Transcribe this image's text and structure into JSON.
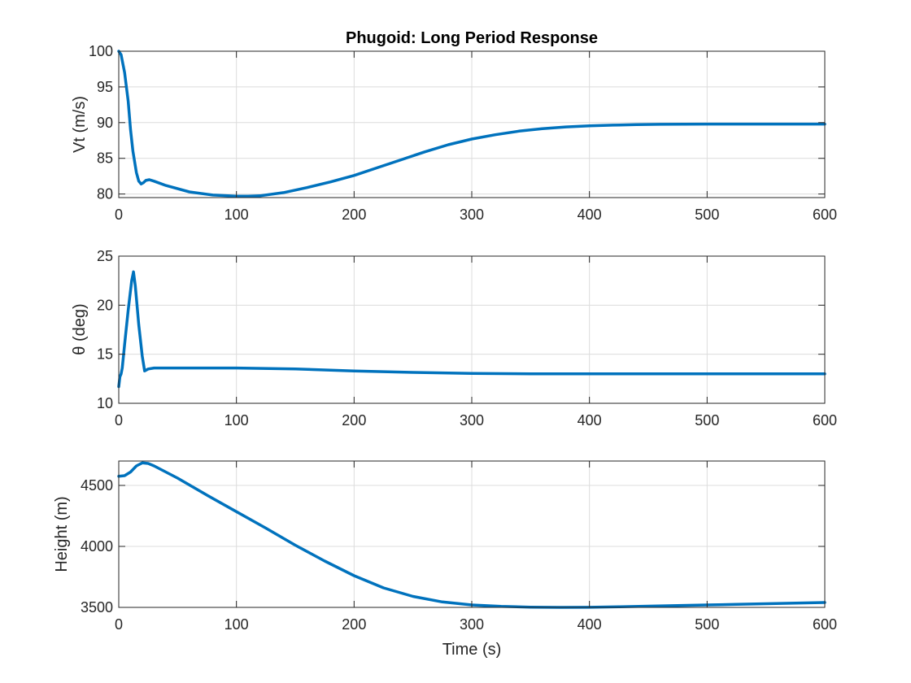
{
  "chart_data": [
    {
      "type": "line",
      "title": "Phugoid: Long Period Response",
      "xlabel": "",
      "ylabel": "Vt (m/s)",
      "xlim": [
        0,
        600
      ],
      "ylim": [
        79.5,
        100
      ],
      "xticks": [
        0,
        100,
        200,
        300,
        400,
        500,
        600
      ],
      "yticks": [
        80,
        85,
        90,
        95,
        100
      ],
      "grid": true,
      "color": "#0072bd",
      "series": [
        {
          "x": [
            0,
            2,
            5,
            8,
            10,
            12,
            15,
            17,
            19,
            21,
            23,
            26,
            30,
            40,
            60,
            80,
            100,
            110,
            120,
            140,
            160,
            180,
            200,
            220,
            240,
            260,
            280,
            300,
            320,
            340,
            360,
            380,
            400,
            420,
            440,
            460,
            480,
            500,
            520,
            540,
            560,
            580,
            600
          ],
          "y": [
            100,
            99.5,
            97,
            93,
            89,
            86,
            83,
            81.8,
            81.4,
            81.6,
            81.9,
            82.0,
            81.8,
            81.2,
            80.3,
            79.85,
            79.7,
            79.7,
            79.75,
            80.2,
            80.9,
            81.7,
            82.6,
            83.7,
            84.8,
            85.9,
            86.9,
            87.7,
            88.3,
            88.8,
            89.15,
            89.4,
            89.55,
            89.65,
            89.72,
            89.76,
            89.78,
            89.8,
            89.8,
            89.8,
            89.8,
            89.8,
            89.8
          ]
        }
      ]
    },
    {
      "type": "line",
      "title": "",
      "xlabel": "",
      "ylabel": "θ (deg)",
      "xlim": [
        0,
        600
      ],
      "ylim": [
        10,
        25
      ],
      "xticks": [
        0,
        100,
        200,
        300,
        400,
        500,
        600
      ],
      "yticks": [
        10,
        15,
        20,
        25
      ],
      "grid": true,
      "color": "#0072bd",
      "series": [
        {
          "x": [
            0,
            1,
            2,
            3,
            5,
            8,
            11,
            12.5,
            14,
            17,
            20,
            22,
            25,
            30,
            50,
            100,
            150,
            200,
            250,
            300,
            350,
            400,
            450,
            500,
            550,
            600
          ],
          "y": [
            11.7,
            12.7,
            13.0,
            13.6,
            16.0,
            19.5,
            22.5,
            23.4,
            22.0,
            18.0,
            14.8,
            13.3,
            13.5,
            13.6,
            13.6,
            13.6,
            13.5,
            13.3,
            13.15,
            13.05,
            13.0,
            13.0,
            13.0,
            13.0,
            13.0,
            13.0
          ]
        }
      ]
    },
    {
      "type": "line",
      "title": "",
      "xlabel": "Time (s)",
      "ylabel": "Height (m)",
      "xlim": [
        0,
        600
      ],
      "ylim": [
        3500,
        4700
      ],
      "xticks": [
        0,
        100,
        200,
        300,
        400,
        500,
        600
      ],
      "yticks": [
        3500,
        4000,
        4500
      ],
      "grid": true,
      "color": "#0072bd",
      "series": [
        {
          "x": [
            0,
            5,
            10,
            15,
            20,
            25,
            30,
            50,
            75,
            100,
            125,
            150,
            175,
            200,
            225,
            250,
            275,
            300,
            325,
            350,
            375,
            400,
            425,
            450,
            475,
            500,
            525,
            550,
            575,
            600
          ],
          "y": [
            4575,
            4580,
            4610,
            4660,
            4685,
            4680,
            4660,
            4560,
            4420,
            4285,
            4150,
            4010,
            3880,
            3760,
            3660,
            3590,
            3545,
            3520,
            3508,
            3502,
            3500,
            3501,
            3505,
            3510,
            3515,
            3520,
            3525,
            3530,
            3535,
            3540
          ]
        }
      ]
    }
  ]
}
